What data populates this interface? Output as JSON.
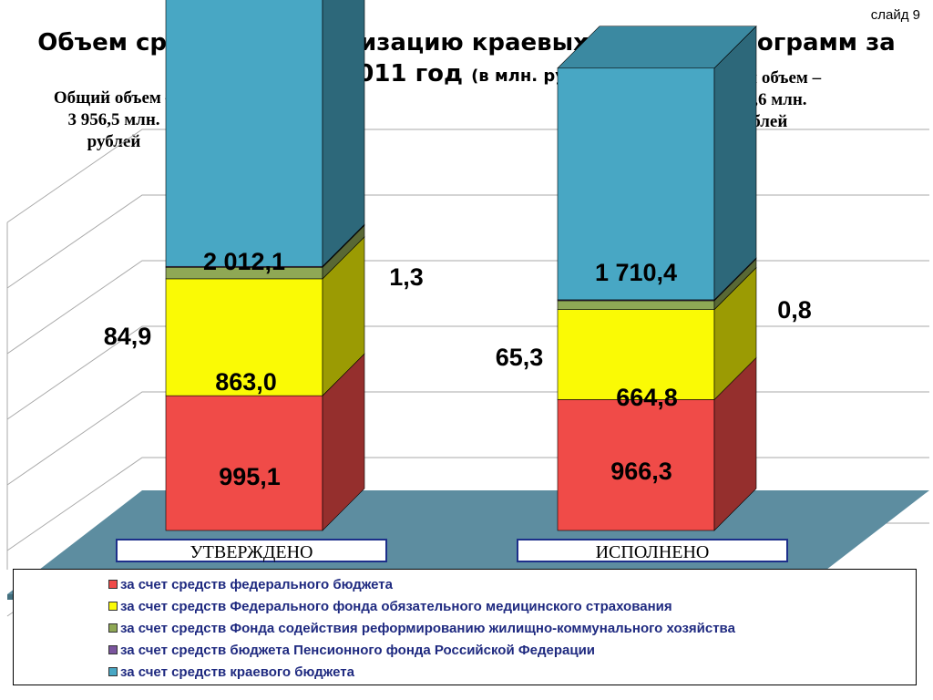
{
  "slide_number": "слайд 9",
  "title": {
    "line1": "Объем средств на реализацию краевых целевых программ за",
    "line2": "2011 год",
    "unit": "(в млн. рублей)"
  },
  "totals": {
    "left": [
      "Общий объем –",
      "3 956,5 млн.",
      "рублей"
    ],
    "right": [
      "Общий объем –",
      "3 407,6 млн.",
      "рублей"
    ]
  },
  "chart_data": {
    "type": "bar",
    "stacked": true,
    "three_d": true,
    "categories": [
      "УТВЕРЖДЕНО",
      "ИСПОЛНЕНО"
    ],
    "series": [
      {
        "name": "за счет средств федерального бюджета",
        "color": "#f04b48",
        "values": [
          995.1,
          966.3
        ],
        "labels": [
          "995,1",
          "966,3"
        ]
      },
      {
        "name": "за счет средств Федерального фонда обязательного медицинского страхования",
        "color": "#fafa05",
        "values": [
          863.0,
          664.8
        ],
        "labels": [
          "863,0",
          "664,8"
        ]
      },
      {
        "name": "за счет средств Фонда содействия реформированию жилищно-коммунального хозяйства",
        "color": "#8fa855",
        "values": [
          84.9,
          65.3
        ],
        "labels": [
          "84,9",
          "65,3"
        ]
      },
      {
        "name": "за счет средств бюджета Пенсионного фонда Российской Федерации",
        "color": "#7b559e",
        "values": [
          1.3,
          0.8
        ],
        "labels": [
          "1,3",
          "0,8"
        ]
      },
      {
        "name": "за счет средств краевого бюджета",
        "color": "#48a7c4",
        "values": [
          2012.1,
          1710.4
        ],
        "labels": [
          "2 012,1",
          "1 710,4"
        ]
      }
    ],
    "legend_position": "bottom",
    "grid": true
  }
}
